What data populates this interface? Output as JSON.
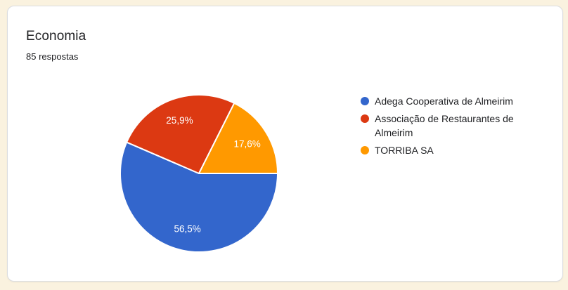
{
  "page": {
    "background_color": "#faf2df"
  },
  "card": {
    "background_color": "#ffffff",
    "border_color": "#dadce0",
    "title": "Economia",
    "title_color": "#202124",
    "responses_label": "85 respostas",
    "responses_color": "#202124"
  },
  "chart_data": {
    "type": "pie",
    "title": "Economia",
    "subtitle": "85 respostas",
    "start_angle_deg": 90,
    "direction": "clockwise",
    "legend_position": "right",
    "slice_label_color": "#ffffff",
    "slice_separator_color": "#ffffff",
    "legend_text_color": "#202124",
    "slices": [
      {
        "label": "Adega Cooperativa de Almeirim",
        "percent": 56.5,
        "display": "56,5%",
        "color": "#3366cc"
      },
      {
        "label": "Associação de Restaurantes de Almeirim",
        "percent": 25.9,
        "display": "25,9%",
        "color": "#dc3912"
      },
      {
        "label": "TORRIBA SA",
        "percent": 17.6,
        "display": "17,6%",
        "color": "#ff9900"
      }
    ]
  }
}
